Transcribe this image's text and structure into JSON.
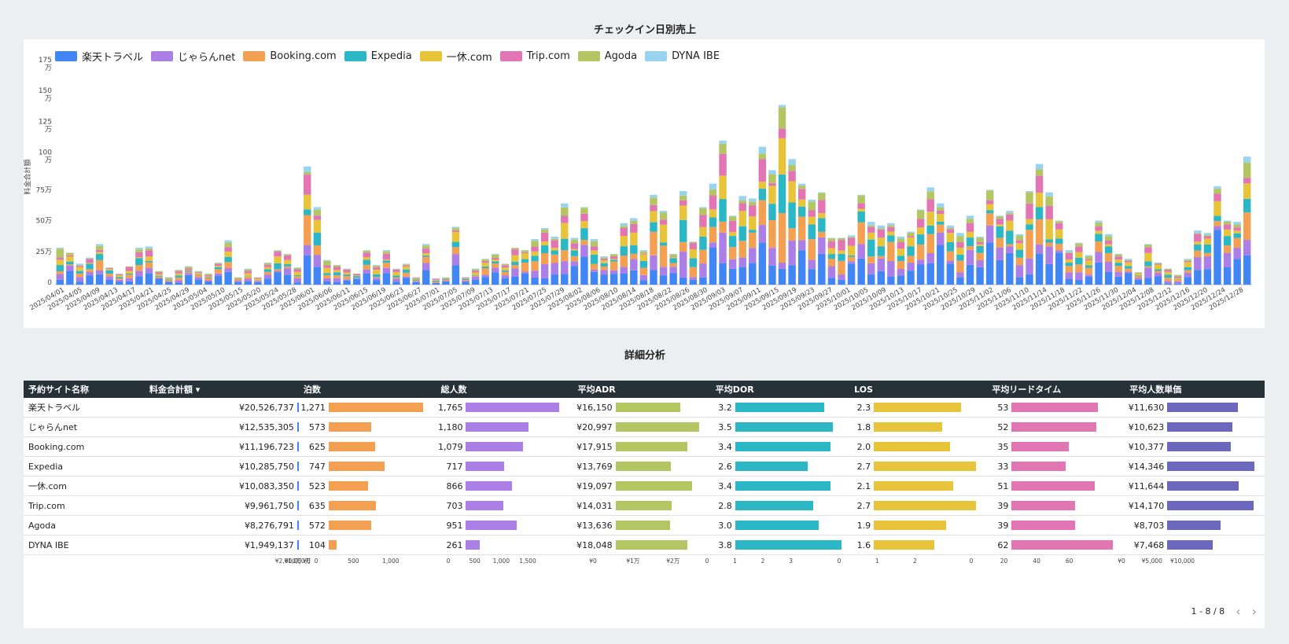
{
  "chart_title": "チェックイン日別売上",
  "table_title": "詳細分析",
  "chart_data": {
    "type": "bar",
    "stacked": true,
    "ylabel": "料金合計額",
    "yticks": [
      "0",
      "25万",
      "50万",
      "75万",
      "100\n万",
      "125\n万",
      "150\n万",
      "175\n万"
    ],
    "ylim": [
      0,
      1750000
    ],
    "series": [
      {
        "name": "楽天トラベル",
        "color": "#4285f4"
      },
      {
        "name": "じゃらんnet",
        "color": "#ab7fe6"
      },
      {
        "name": "Booking.com",
        "color": "#f4a053"
      },
      {
        "name": "Expedia",
        "color": "#2bb7c6"
      },
      {
        "name": "一休.com",
        "color": "#e8c43a"
      },
      {
        "name": "Trip.com",
        "color": "#e276b4"
      },
      {
        "name": "Agoda",
        "color": "#b3c661"
      },
      {
        "name": "DYNA IBE",
        "color": "#98d4ef"
      }
    ],
    "x_tick_labels": [
      "2025/04/01",
      "2025/04/05",
      "2025/04/09",
      "2025/04/13",
      "2025/04/17",
      "2025/04/21",
      "2025/04/25",
      "2025/04/29",
      "2025/05/04",
      "2025/05/10",
      "2025/05/15",
      "2025/05/20",
      "2025/05/24",
      "2025/05/28",
      "2025/06/01",
      "2025/06/06",
      "2025/06/11",
      "2025/06/15",
      "2025/06/19",
      "2025/06/23",
      "2025/06/27",
      "2025/07/01",
      "2025/07/05",
      "2025/07/09",
      "2025/07/13",
      "2025/07/17",
      "2025/07/21",
      "2025/07/25",
      "2025/07/29",
      "2025/08/02",
      "2025/08/06",
      "2025/08/10",
      "2025/08/14",
      "2025/08/18",
      "2025/08/22",
      "2025/08/26",
      "2025/08/30",
      "2025/09/03",
      "2025/09/07",
      "2025/09/11",
      "2025/09/15",
      "2025/09/19",
      "2025/09/23",
      "2025/09/27",
      "2025/10/01",
      "2025/10/05",
      "2025/10/09",
      "2025/10/13",
      "2025/10/17",
      "2025/10/21",
      "2025/10/25",
      "2025/10/29",
      "2025/11/02",
      "2025/11/06",
      "2025/11/10",
      "2025/11/14",
      "2025/11/18",
      "2025/11/22",
      "2025/11/26",
      "2025/11/30",
      "2025/12/04",
      "2025/12/08",
      "2025/12/12",
      "2025/12/16",
      "2025/12/20",
      "2025/12/24",
      "2025/12/28"
    ],
    "daily_totals": [
      300000,
      260000,
      170000,
      220000,
      330000,
      140000,
      90000,
      150000,
      300000,
      310000,
      110000,
      60000,
      120000,
      150000,
      110000,
      90000,
      180000,
      360000,
      60000,
      130000,
      60000,
      180000,
      280000,
      250000,
      140000,
      960000,
      630000,
      200000,
      160000,
      130000,
      90000,
      280000,
      160000,
      280000,
      130000,
      170000,
      60000,
      330000,
      50000,
      60000,
      470000,
      60000,
      130000,
      210000,
      250000,
      170000,
      300000,
      280000,
      370000,
      460000,
      390000,
      660000,
      380000,
      630000,
      370000,
      230000,
      250000,
      500000,
      540000,
      280000,
      730000,
      600000,
      250000,
      760000,
      350000,
      630000,
      820000,
      1170000,
      560000,
      720000,
      700000,
      1120000,
      930000,
      1460000,
      1020000,
      820000,
      690000,
      750000,
      380000,
      380000,
      400000,
      730000,
      510000,
      480000,
      500000,
      390000,
      430000,
      610000,
      790000,
      660000,
      480000,
      420000,
      560000,
      390000,
      770000,
      560000,
      600000,
      410000,
      760000,
      980000,
      750000,
      520000,
      280000,
      340000,
      240000,
      520000,
      410000,
      250000,
      210000,
      100000,
      330000,
      180000,
      130000,
      80000,
      210000,
      440000,
      420000,
      800000,
      520000,
      510000,
      1040000
    ],
    "axis_tick_labels_table": {
      "料金合計額": [
        "¥0",
        "¥1,000万",
        "¥2,000万"
      ],
      "泊数": [
        "0",
        "500",
        "1,000"
      ],
      "総人数": [
        "0",
        "500",
        "1,000",
        "1,500"
      ],
      "平均ADR": [
        "¥0",
        "¥1万",
        "¥2万"
      ],
      "平均DOR": [
        "0",
        "1",
        "2",
        "3"
      ],
      "LOS": [
        "0",
        "1",
        "2"
      ],
      "平均リードタイム": [
        "0",
        "20",
        "40",
        "60"
      ],
      "平均人数単価": [
        "¥0",
        "¥5,000",
        "¥10,000"
      ]
    }
  },
  "table": {
    "headers": [
      "予約サイト名称",
      "料金合計額 ▾",
      "泊数",
      "総人数",
      "平均ADR",
      "平均DOR",
      "LOS",
      "平均リードタイム",
      "平均人数単価"
    ],
    "rows": [
      {
        "name": "楽天トラベル",
        "revenue": "¥20,526,737",
        "rev_v": 20526737,
        "nights": "1,271",
        "n_v": 1271,
        "guests": "1,765",
        "g_v": 1765,
        "adr": "¥16,150",
        "adr_v": 16150,
        "dor": "3.2",
        "dor_v": 3.2,
        "los": "2.3",
        "los_v": 2.3,
        "lead": "53",
        "lead_v": 53,
        "ppu": "¥11,630",
        "ppu_v": 11630
      },
      {
        "name": "じゃらんnet",
        "revenue": "¥12,535,305",
        "rev_v": 12535305,
        "nights": "573",
        "n_v": 573,
        "guests": "1,180",
        "g_v": 1180,
        "adr": "¥20,997",
        "adr_v": 20997,
        "dor": "3.5",
        "dor_v": 3.5,
        "los": "1.8",
        "los_v": 1.8,
        "lead": "52",
        "lead_v": 52,
        "ppu": "¥10,623",
        "ppu_v": 10623
      },
      {
        "name": "Booking.com",
        "revenue": "¥11,196,723",
        "rev_v": 11196723,
        "nights": "625",
        "n_v": 625,
        "guests": "1,079",
        "g_v": 1079,
        "adr": "¥17,915",
        "adr_v": 17915,
        "dor": "3.4",
        "dor_v": 3.4,
        "los": "2.0",
        "los_v": 2.0,
        "lead": "35",
        "lead_v": 35,
        "ppu": "¥10,377",
        "ppu_v": 10377
      },
      {
        "name": "Expedia",
        "revenue": "¥10,285,750",
        "rev_v": 10285750,
        "nights": "747",
        "n_v": 747,
        "guests": "717",
        "g_v": 717,
        "adr": "¥13,769",
        "adr_v": 13769,
        "dor": "2.6",
        "dor_v": 2.6,
        "los": "2.7",
        "los_v": 2.7,
        "lead": "33",
        "lead_v": 33,
        "ppu": "¥14,346",
        "ppu_v": 14346
      },
      {
        "name": "一休.com",
        "revenue": "¥10,083,350",
        "rev_v": 10083350,
        "nights": "523",
        "n_v": 523,
        "guests": "866",
        "g_v": 866,
        "adr": "¥19,097",
        "adr_v": 19097,
        "dor": "3.4",
        "dor_v": 3.4,
        "los": "2.1",
        "los_v": 2.1,
        "lead": "51",
        "lead_v": 51,
        "ppu": "¥11,644",
        "ppu_v": 11644
      },
      {
        "name": "Trip.com",
        "revenue": "¥9,961,750",
        "rev_v": 9961750,
        "nights": "635",
        "n_v": 635,
        "guests": "703",
        "g_v": 703,
        "adr": "¥14,031",
        "adr_v": 14031,
        "dor": "2.8",
        "dor_v": 2.8,
        "los": "2.7",
        "los_v": 2.7,
        "lead": "39",
        "lead_v": 39,
        "ppu": "¥14,170",
        "ppu_v": 14170
      },
      {
        "name": "Agoda",
        "revenue": "¥8,276,791",
        "rev_v": 8276791,
        "nights": "572",
        "n_v": 572,
        "guests": "951",
        "g_v": 951,
        "adr": "¥13,636",
        "adr_v": 13636,
        "dor": "3.0",
        "dor_v": 3.0,
        "los": "1.9",
        "los_v": 1.9,
        "lead": "39",
        "lead_v": 39,
        "ppu": "¥8,703",
        "ppu_v": 8703
      },
      {
        "name": "DYNA IBE",
        "revenue": "¥1,949,137",
        "rev_v": 1949137,
        "nights": "104",
        "n_v": 104,
        "guests": "261",
        "g_v": 261,
        "adr": "¥18,048",
        "adr_v": 18048,
        "dor": "3.8",
        "dor_v": 3.8,
        "los": "1.6",
        "los_v": 1.6,
        "lead": "62",
        "lead_v": 62,
        "ppu": "¥7,468",
        "ppu_v": 7468
      }
    ]
  },
  "pager": {
    "range": "1 - 8 / 8",
    "prev": "‹",
    "next": "›"
  }
}
